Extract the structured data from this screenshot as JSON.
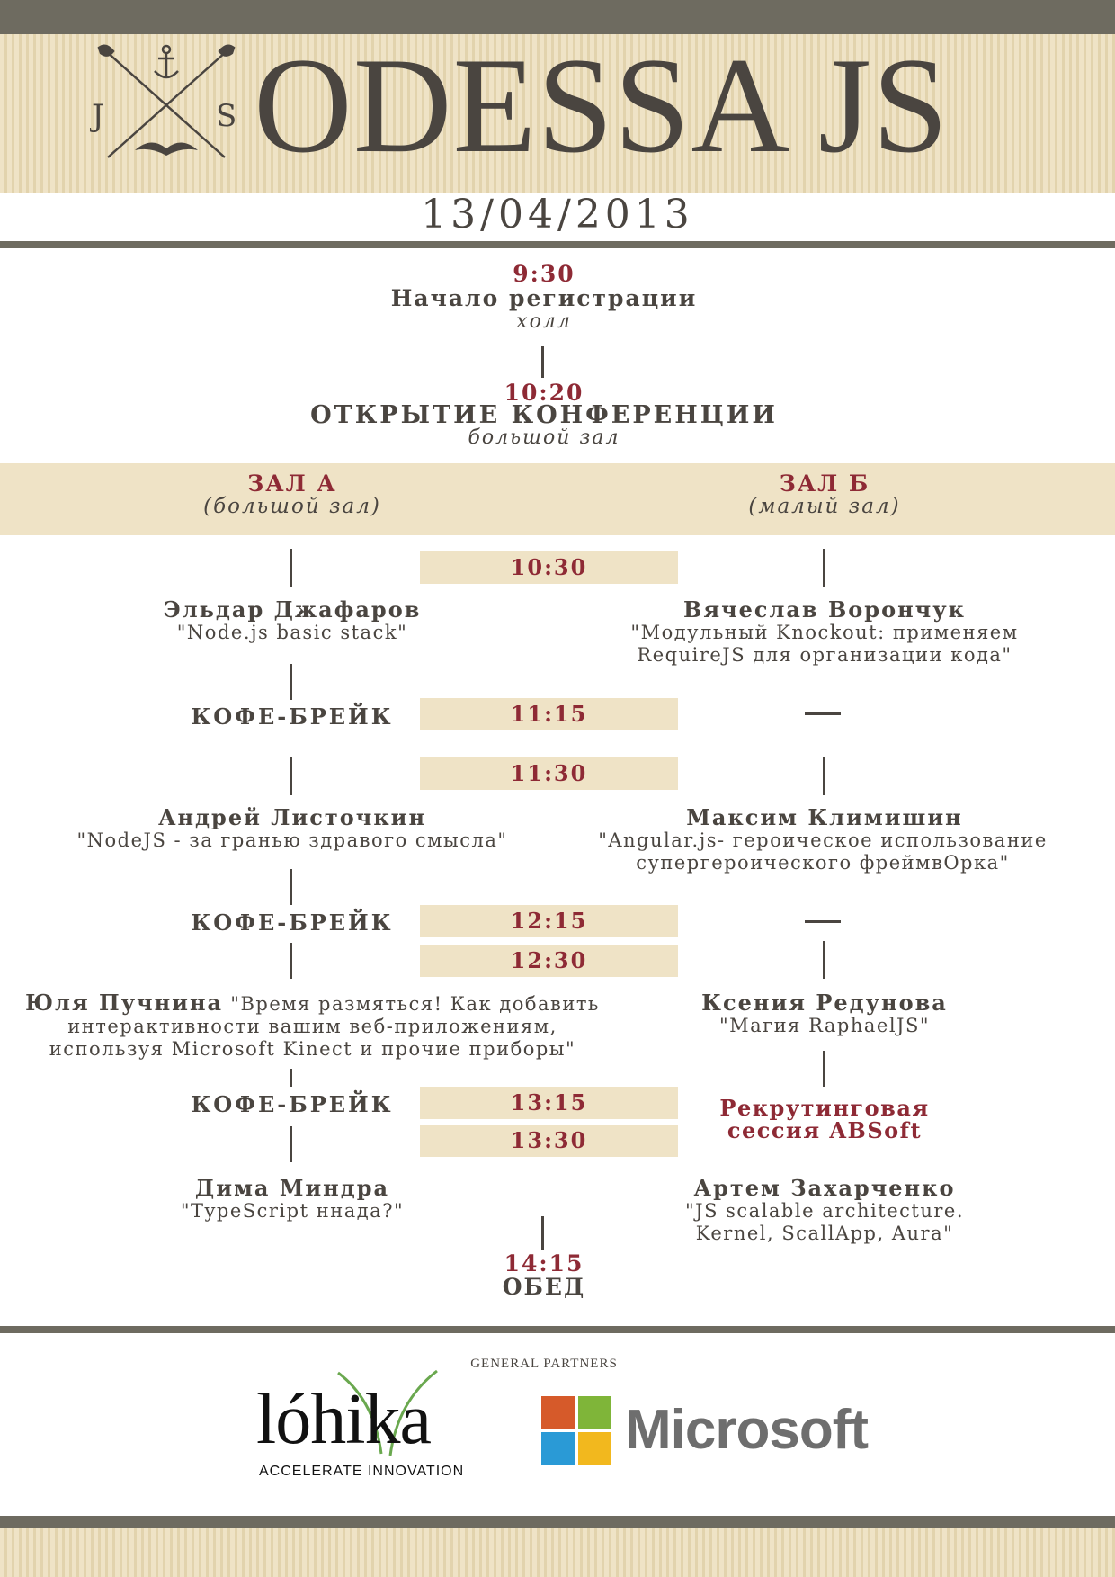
{
  "header": {
    "logo_letters": [
      "J",
      "S"
    ],
    "title": "ODESSA JS",
    "date": "13/04/2013"
  },
  "opening": [
    {
      "time": "9:30",
      "title": "Начало регистрации",
      "place": "холл"
    },
    {
      "time": "10:20",
      "title": "ОТКРЫТИЕ КОНФЕРЕНЦИИ",
      "place": "большой зал"
    }
  ],
  "halls": {
    "a": {
      "name": "ЗАЛ А",
      "sub": "(большой зал)"
    },
    "b": {
      "name": "ЗАЛ Б",
      "sub": "(малый зал)"
    }
  },
  "schedule": {
    "times": [
      "10:30",
      "11:15",
      "11:30",
      "12:15",
      "12:30",
      "13:15",
      "13:30"
    ],
    "coffee": "КОФЕ-БРЕЙК",
    "hall_a": [
      {
        "speaker": "Эльдар Джафаров",
        "talk": [
          "\"Node.js basic stack\""
        ]
      },
      {
        "speaker": "Андрей Листочкин",
        "talk": [
          "\"NodeJS - за гранью здравого смысла\""
        ]
      },
      {
        "speaker": "Юля Пучнина",
        "talk": [
          "\"Время размяться! Как добавить",
          "интерактивности вашим веб-приложениям,",
          "используя Microsoft Kinect и прочие приборы\""
        ]
      },
      {
        "speaker": "Дима Миндра",
        "talk": [
          "\"TypeScript ннада?\""
        ]
      }
    ],
    "hall_b": [
      {
        "speaker": "Вячеслав Ворончук",
        "talk": [
          "\"Модульный Knockout: применяем",
          "RequireJS для организации кода\""
        ]
      },
      {
        "speaker": "Максим Климишин",
        "talk": [
          "\"Angular.js- героическое использование",
          "супергероического фреймвОрка\""
        ]
      },
      {
        "speaker": "Ксения Редунова",
        "talk": [
          "\"Магия RaphaelJS\""
        ]
      },
      {
        "speaker": "Артем Захарченко",
        "talk": [
          "\"JS scalable architecture.",
          "Kernel, ScallApp, Aura\""
        ]
      }
    ],
    "recruiting": [
      "Рекрутинговая",
      "сессия ABSoft"
    ]
  },
  "lunch": {
    "time": "14:15",
    "title": "ОБЕД"
  },
  "partners": {
    "label": "GENERAL PARTNERS",
    "lohika": {
      "name": "lóhika",
      "tagline": "ACCELERATE INNOVATION"
    },
    "microsoft": {
      "name": "Microsoft",
      "colors": [
        "#d65a2a",
        "#7fb539",
        "#2a9ad6",
        "#f2b81e"
      ]
    }
  },
  "colors": {
    "accent": "#8e2a35",
    "text": "#4a4540",
    "band": "#efe3c6",
    "bar": "#6e6b60"
  }
}
